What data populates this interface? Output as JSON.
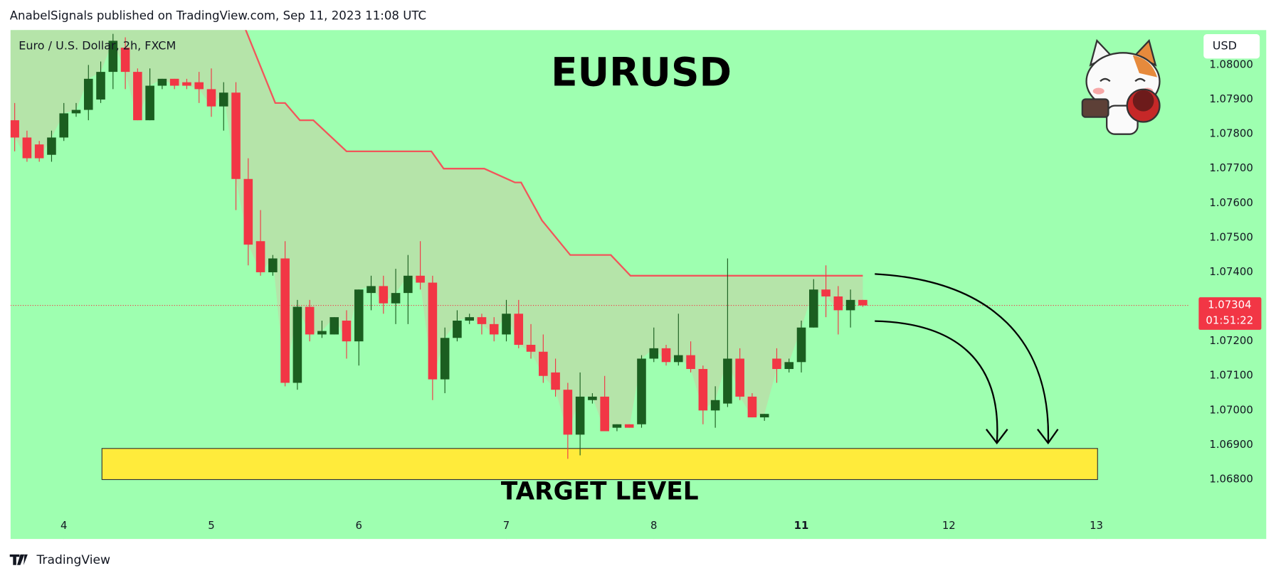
{
  "header": "AnabelSignals published on TradingView.com, Sep 11, 2023 11:08 UTC",
  "currency_button": "USD",
  "footer_brand": "TradingView",
  "chart_data": {
    "type": "candlestick",
    "title": "EURUSD",
    "subtitle": "Euro / U.S. Dollar, 2h, FXCM",
    "up_color": "#1b5e20",
    "down_color": "#f23645",
    "background": "#9effb0",
    "open": [
      1.0784,
      1.0779,
      1.0777,
      1.0774,
      1.0779,
      1.0786,
      1.0787,
      1.079,
      1.0798,
      1.0805,
      1.0798,
      1.0784,
      1.0794,
      1.0796,
      1.0795,
      1.0795,
      1.0793,
      1.0788,
      1.0792,
      1.0767,
      1.0749,
      1.074,
      1.0744,
      1.0708,
      1.073,
      1.0722,
      1.0722,
      1.0726,
      1.072,
      1.0734,
      1.0736,
      1.0731,
      1.0734,
      1.0739,
      1.0737,
      1.0709,
      1.0721,
      1.0726,
      1.0727,
      1.0725,
      1.0722,
      1.0728,
      1.0719,
      1.0717,
      1.0711,
      1.0706,
      1.0693,
      1.0703,
      1.0704,
      1.0695,
      1.0696,
      1.0696,
      1.0715,
      1.0718,
      1.0714,
      1.0716,
      1.0712,
      1.07,
      1.0702,
      1.0715,
      1.0704,
      1.0698,
      1.0715,
      1.0712,
      1.0714,
      1.0724,
      1.0735,
      1.0733,
      1.0729,
      1.0732
    ],
    "high": [
      1.0789,
      1.0781,
      1.0778,
      1.0781,
      1.0789,
      1.0789,
      1.08,
      1.0801,
      1.0809,
      1.0808,
      1.0799,
      1.0799,
      1.0796,
      1.0796,
      1.0796,
      1.0798,
      1.0799,
      1.0795,
      1.0795,
      1.0773,
      1.0758,
      1.0745,
      1.0749,
      1.0732,
      1.0732,
      1.0726,
      1.0727,
      1.0729,
      1.0735,
      1.0739,
      1.0739,
      1.0741,
      1.0745,
      1.0749,
      1.0739,
      1.0724,
      1.0729,
      1.0728,
      1.0728,
      1.0727,
      1.0732,
      1.0732,
      1.0725,
      1.0722,
      1.0715,
      1.0708,
      1.0711,
      1.0705,
      1.071,
      1.0696,
      1.0696,
      1.0716,
      1.0724,
      1.0719,
      1.0728,
      1.072,
      1.0713,
      1.0707,
      1.0744,
      1.0718,
      1.0705,
      1.0699,
      1.0718,
      1.0715,
      1.0726,
      1.0738,
      1.0742,
      1.0736,
      1.0735,
      1.0732
    ],
    "low": [
      1.0775,
      1.0772,
      1.0772,
      1.0772,
      1.0778,
      1.0785,
      1.0784,
      1.0789,
      1.0793,
      1.0793,
      1.0784,
      1.0784,
      1.0793,
      1.0793,
      1.0793,
      1.0789,
      1.0785,
      1.0781,
      1.0758,
      1.0742,
      1.0739,
      1.0739,
      1.0707,
      1.0706,
      1.072,
      1.0721,
      1.0722,
      1.0715,
      1.0713,
      1.0729,
      1.0728,
      1.0725,
      1.0725,
      1.0735,
      1.0703,
      1.0705,
      1.072,
      1.0725,
      1.0722,
      1.072,
      1.072,
      1.0718,
      1.0715,
      1.0708,
      1.0704,
      1.0686,
      1.0687,
      1.0702,
      1.0694,
      1.0694,
      1.0695,
      1.0695,
      1.0714,
      1.0713,
      1.0713,
      1.0711,
      1.0696,
      1.0695,
      1.0701,
      1.0703,
      1.0698,
      1.0697,
      1.0708,
      1.0711,
      1.0711,
      1.0724,
      1.0727,
      1.0722,
      1.0724,
      1.073
    ],
    "close": [
      1.0779,
      1.0773,
      1.0773,
      1.0779,
      1.0786,
      1.0787,
      1.0796,
      1.0798,
      1.0807,
      1.0798,
      1.0784,
      1.0794,
      1.0796,
      1.0794,
      1.0794,
      1.0793,
      1.0788,
      1.0792,
      1.0767,
      1.0748,
      1.074,
      1.0744,
      1.0708,
      1.073,
      1.0722,
      1.0723,
      1.0727,
      1.072,
      1.0735,
      1.0736,
      1.0731,
      1.0734,
      1.0739,
      1.0737,
      1.0709,
      1.0721,
      1.0726,
      1.0727,
      1.0725,
      1.0722,
      1.0728,
      1.0719,
      1.0717,
      1.071,
      1.0706,
      1.0693,
      1.0704,
      1.0704,
      1.0694,
      1.0696,
      1.0695,
      1.0715,
      1.0718,
      1.0714,
      1.0716,
      1.0712,
      1.07,
      1.0703,
      1.0715,
      1.0704,
      1.0698,
      1.0699,
      1.0712,
      1.0714,
      1.0724,
      1.0735,
      1.0733,
      1.0729,
      1.0732,
      1.07304
    ],
    "trend_line": {
      "color": "#f2555a",
      "x": [
        18.7,
        21.2,
        22.0,
        23.2,
        24.3,
        27.0,
        33.9,
        34.9,
        38.2,
        40.7,
        41.2,
        42.9,
        45.2,
        48.5,
        50.1,
        69.0
      ],
      "values": [
        1.0811,
        1.0789,
        1.0789,
        1.0784,
        1.0784,
        1.0775,
        1.0775,
        1.077,
        1.077,
        1.0766,
        1.0766,
        1.0755,
        1.0745,
        1.0745,
        1.0739,
        1.0739
      ]
    },
    "target_zone": {
      "label": "TARGET LEVEL",
      "color": "#ffeb3b",
      "x": [
        7.1,
        88.1
      ],
      "y": [
        1.068,
        1.0689
      ]
    },
    "last_price": 1.07304,
    "countdown": "01:51:22",
    "xlim": [
      -0.5,
      95.5
    ],
    "xticks": [
      {
        "value": 4,
        "label": "4"
      },
      {
        "value": 16,
        "label": "5"
      },
      {
        "value": 28,
        "label": "6"
      },
      {
        "value": 40,
        "label": "7"
      },
      {
        "value": 52,
        "label": "8"
      },
      {
        "value": 64,
        "label": "11"
      },
      {
        "value": 76,
        "label": "12"
      },
      {
        "value": 88,
        "label": "13"
      }
    ],
    "ylim": [
      1.06628,
      1.08101
    ],
    "yticks": [
      {
        "value": 1.068,
        "label": "1.06800"
      },
      {
        "value": 1.069,
        "label": "1.06900"
      },
      {
        "value": 1.07,
        "label": "1.07000"
      },
      {
        "value": 1.071,
        "label": "1.07100"
      },
      {
        "value": 1.072,
        "label": "1.07200"
      },
      {
        "value": 1.073,
        "label": "1.07300"
      },
      {
        "value": 1.074,
        "label": "1.07400"
      },
      {
        "value": 1.075,
        "label": "1.07500"
      },
      {
        "value": 1.076,
        "label": "1.07600"
      },
      {
        "value": 1.077,
        "label": "1.07700"
      },
      {
        "value": 1.078,
        "label": "1.07800"
      },
      {
        "value": 1.079,
        "label": "1.07900"
      },
      {
        "value": 1.08,
        "label": "1.08000"
      }
    ]
  }
}
